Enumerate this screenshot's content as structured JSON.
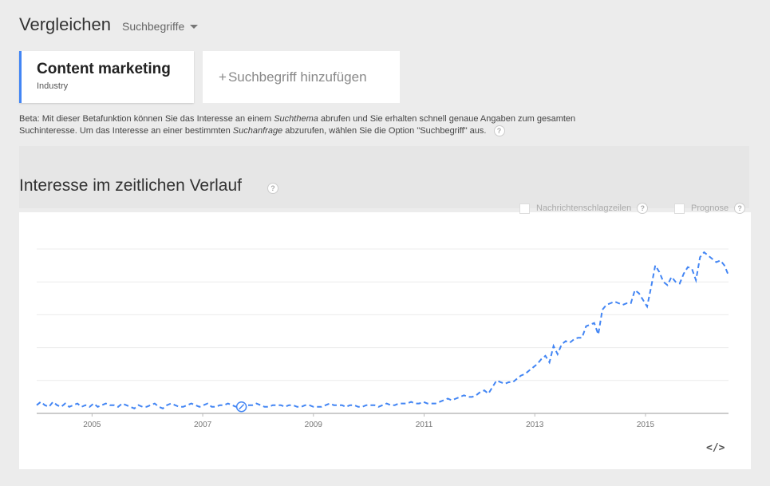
{
  "header": {
    "title": "Vergleichen",
    "dropdown_label": "Suchbegriffe"
  },
  "term": {
    "name": "Content marketing",
    "category": "Industry",
    "accent_color": "#4285f4"
  },
  "add_term": {
    "plus": "+",
    "label": "Suchbegriff hinzufügen"
  },
  "beta_note": {
    "part1": "Beta: Mit dieser Betafunktion können Sie das Interesse an einem ",
    "em1": "Suchthema",
    "part2": " abrufen und Sie erhalten schnell genaue Angaben zum gesamten Suchinteresse. Um das Interesse an einer bestimmten ",
    "em2": "Suchanfrage",
    "part3": " abzurufen, wählen Sie die Option \"Suchbegriff\" aus."
  },
  "section": {
    "title": "Interesse im zeitlichen Verlauf"
  },
  "options": {
    "news": "Nachrichtenschlagzeilen",
    "forecast": "Prognose"
  },
  "help_glyph": "?",
  "embed_glyph": "</>",
  "chart_data": {
    "type": "line",
    "x_start": 2004.0,
    "x_end": 2016.5,
    "xlim": [
      2004.0,
      2016.5
    ],
    "ylim": [
      0,
      100
    ],
    "grid": true,
    "x_tick_labels": [
      "2005",
      "2007",
      "2009",
      "2011",
      "2013",
      "2015"
    ],
    "x_tick_values": [
      2005,
      2007,
      2009,
      2011,
      2013,
      2015
    ],
    "line_color": "#4285f4",
    "annotation_marker_x": 2007.7,
    "values": [
      5,
      7,
      5,
      4,
      7,
      5,
      4,
      6,
      4,
      5,
      6,
      4,
      5,
      4,
      6,
      4,
      5,
      6,
      5,
      5,
      4,
      6,
      5,
      4,
      3,
      5,
      4,
      4,
      5,
      6,
      4,
      3,
      5,
      6,
      5,
      4,
      4,
      5,
      6,
      5,
      4,
      5,
      6,
      4,
      4,
      5,
      5,
      6,
      5,
      4,
      4,
      5,
      5,
      5,
      6,
      5,
      4,
      4,
      5,
      5,
      5,
      4,
      5,
      5,
      4,
      4,
      5,
      5,
      4,
      4,
      4,
      5,
      6,
      5,
      5,
      5,
      4,
      5,
      5,
      4,
      4,
      5,
      5,
      5,
      4,
      5,
      6,
      5,
      5,
      6,
      6,
      6,
      7,
      6,
      6,
      7,
      6,
      6,
      6,
      7,
      8,
      9,
      8,
      9,
      10,
      11,
      10,
      10,
      11,
      13,
      14,
      12,
      16,
      20,
      19,
      18,
      19,
      19,
      21,
      23,
      24,
      26,
      28,
      30,
      33,
      35,
      31,
      41,
      36,
      42,
      44,
      43,
      45,
      46,
      46,
      53,
      54,
      55,
      48,
      63,
      66,
      67,
      68,
      67,
      66,
      67,
      67,
      75,
      73,
      69,
      65,
      77,
      90,
      86,
      80,
      78,
      83,
      80,
      79,
      85,
      89,
      88,
      81,
      95,
      98,
      96,
      94,
      92,
      93,
      90,
      84
    ]
  }
}
